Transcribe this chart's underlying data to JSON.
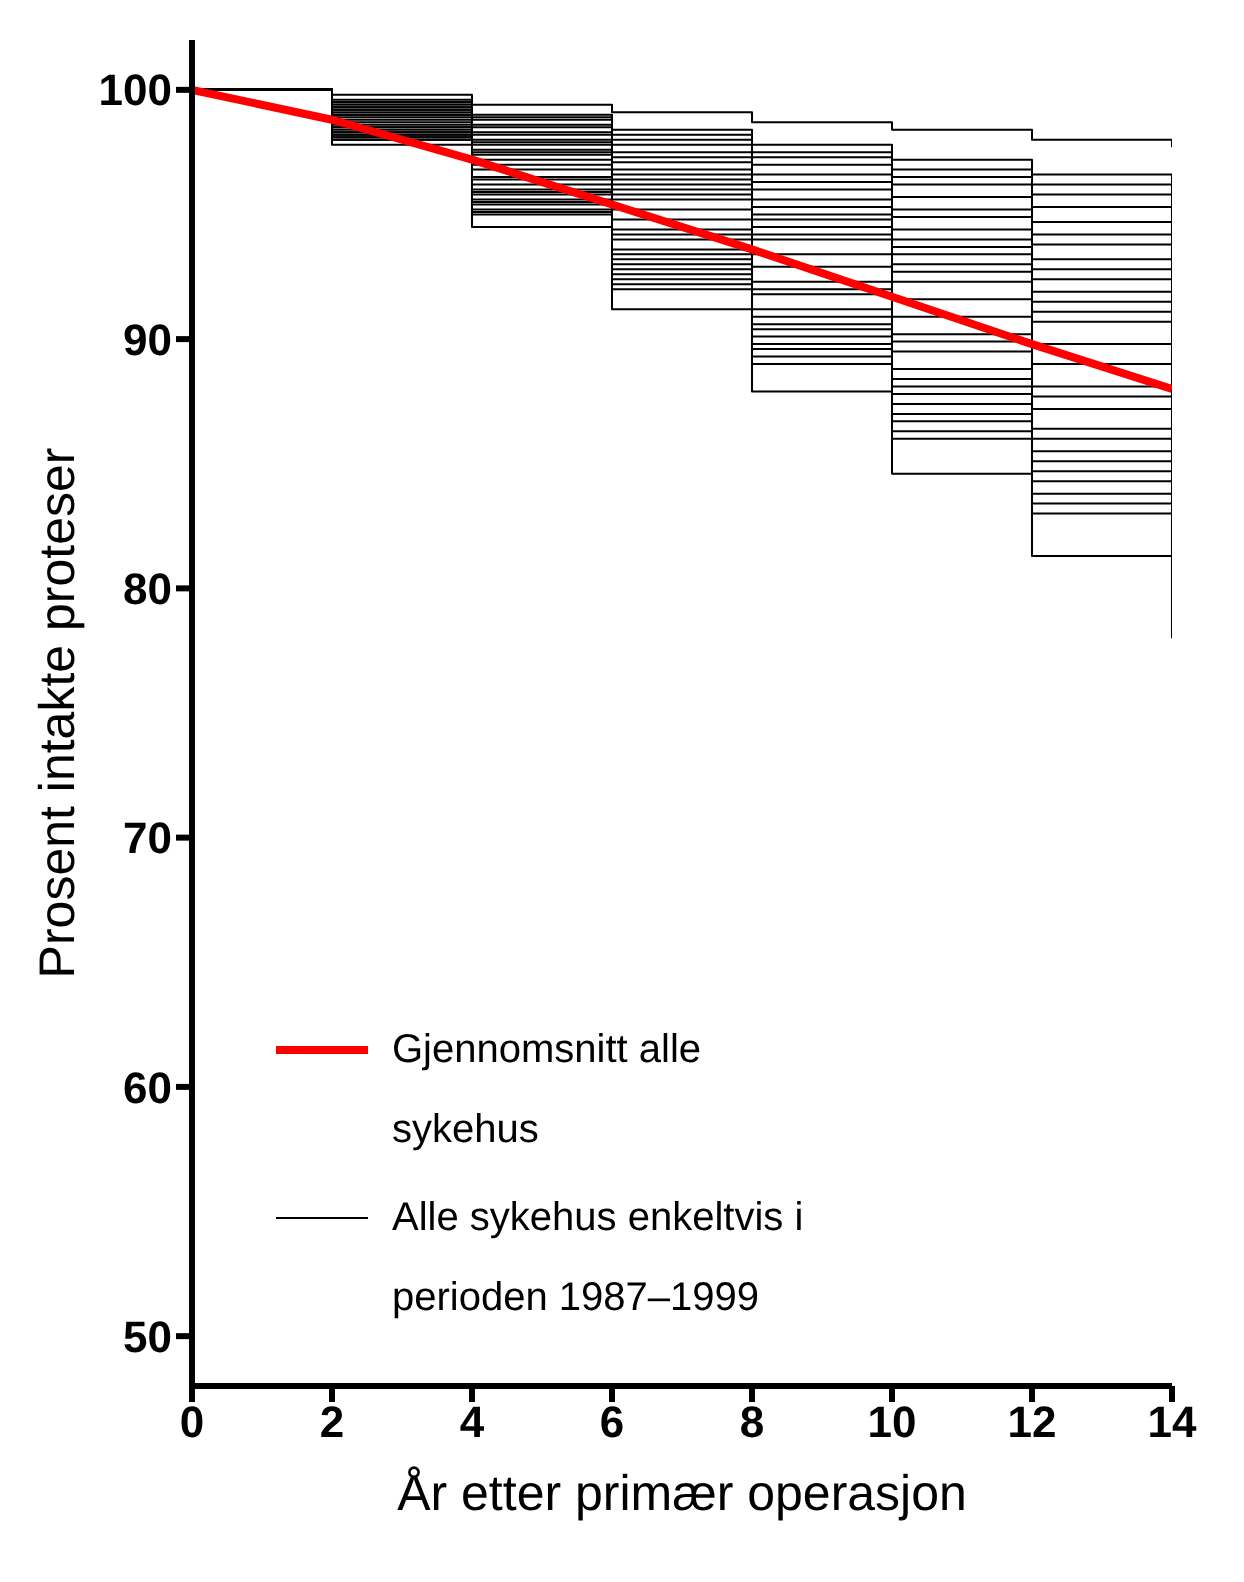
{
  "chart_data": {
    "type": "step",
    "xlabel": "År etter primær operasjon",
    "ylabel": "Prosent intakte proteser",
    "x": [
      0,
      2,
      4,
      6,
      8,
      10,
      12,
      14
    ],
    "xlim": [
      0,
      14
    ],
    "xticks": [
      0,
      2,
      4,
      6,
      8,
      10,
      12,
      14
    ],
    "ylim": [
      48,
      102
    ],
    "yticks": [
      50,
      60,
      70,
      80,
      90,
      100
    ],
    "grid": false,
    "legend": "bottom left",
    "marker": "none",
    "line_style": "solid",
    "series": [
      {
        "name": "Alle sykehus enkeltvis i perioden 1987–1999",
        "color": "#000000",
        "values": [
          100,
          99.8,
          99.4,
          99.1,
          98.7,
          98.4,
          98,
          97.7
        ]
      },
      {
        "color": "#000000",
        "values": [
          100,
          99.6,
          99,
          98.4,
          97.8,
          97.2,
          96.6,
          96
        ]
      },
      {
        "color": "#000000",
        "values": [
          100,
          99.5,
          98.9,
          98.2,
          97.5,
          96.8,
          96.2,
          95.5
        ]
      },
      {
        "color": "#000000",
        "values": [
          100,
          99.5,
          98.8,
          98,
          97.3,
          96.5,
          95.8,
          95
        ]
      },
      {
        "color": "#000000",
        "values": [
          100,
          99.5,
          98.6,
          97.8,
          97,
          96.2,
          95.3,
          94.5
        ]
      },
      {
        "color": "#000000",
        "values": [
          100,
          99.4,
          98.5,
          97.5,
          96.6,
          95.7,
          94.7,
          93.8
        ]
      },
      {
        "color": "#000000",
        "values": [
          100,
          99.3,
          98.3,
          97.3,
          96.3,
          95.2,
          94.2,
          93.2
        ]
      },
      {
        "color": "#000000",
        "values": [
          100,
          99.3,
          98.2,
          97.1,
          96,
          94.9,
          93.8,
          92.7
        ]
      },
      {
        "color": "#000000",
        "values": [
          100,
          99.2,
          98,
          96.8,
          95.6,
          94.4,
          93.2,
          92
        ]
      },
      {
        "color": "#000000",
        "values": [
          100,
          99.2,
          97.9,
          96.6,
          95.3,
          94,
          92.8,
          91.5
        ]
      },
      {
        "color": "#000000",
        "values": [
          100,
          99.1,
          97.8,
          96.4,
          95,
          93.7,
          92.4,
          91
        ]
      },
      {
        "color": "#000000",
        "values": [
          100,
          99,
          97.6,
          96.2,
          94.8,
          93.4,
          91.9,
          90.5
        ]
      },
      {
        "color": "#000000",
        "values": [
          100,
          99,
          97.5,
          96,
          94.5,
          93,
          91.5,
          90
        ]
      },
      {
        "color": "#000000",
        "values": [
          100,
          99,
          97.4,
          95.8,
          94.2,
          92.7,
          91.1,
          89.5
        ]
      },
      {
        "color": "#000000",
        "values": [
          100,
          98.9,
          97.2,
          95.6,
          94,
          92.3,
          90.7,
          89
        ]
      },
      {
        "color": "#000000",
        "values": [
          100,
          98.8,
          97,
          95.2,
          93.4,
          91.6,
          89.8,
          88
        ]
      },
      {
        "color": "#000000",
        "values": [
          100,
          98.7,
          96.8,
          94.8,
          92.9,
          90.9,
          89,
          87
        ]
      },
      {
        "color": "#000000",
        "values": [
          100,
          98.6,
          96.5,
          94.4,
          92.3,
          90.2,
          88.1,
          86
        ]
      },
      {
        "color": "#000000",
        "values": [
          100,
          98.5,
          96.4,
          94.2,
          92,
          89.9,
          87.7,
          85.5
        ]
      },
      {
        "color": "#000000",
        "values": [
          100,
          98.5,
          96.2,
          94,
          91.8,
          89.5,
          87.2,
          85
        ]
      },
      {
        "color": "#000000",
        "values": [
          100,
          98.4,
          96,
          93.6,
          91.2,
          88.8,
          86.4,
          84
        ]
      },
      {
        "color": "#000000",
        "values": [
          100,
          98.3,
          95.9,
          93.4,
          90.9,
          88.4,
          86,
          83.5
        ]
      },
      {
        "color": "#000000",
        "values": [
          100,
          98.3,
          95.8,
          93.2,
          90.6,
          88.1,
          85.5,
          83
        ]
      },
      {
        "color": "#000000",
        "values": [
          100,
          98.2,
          95.6,
          93,
          90.4,
          87.8,
          85.1,
          82.5
        ]
      },
      {
        "color": "#000000",
        "values": [
          100,
          98.2,
          95.5,
          92.8,
          90.1,
          87.4,
          84.7,
          82
        ]
      },
      {
        "color": "#000000",
        "values": [
          100,
          98.1,
          95.4,
          92.6,
          89.8,
          87,
          84.3,
          81.5
        ]
      },
      {
        "color": "#000000",
        "values": [
          100,
          98.1,
          95.2,
          92.4,
          89.6,
          86.7,
          83.8,
          81
        ]
      },
      {
        "color": "#000000",
        "values": [
          100,
          98,
          95.1,
          92.2,
          89.3,
          86.3,
          83.4,
          80.5
        ]
      },
      {
        "color": "#000000",
        "values": [
          100,
          98,
          95,
          92,
          89,
          86,
          83,
          80
        ]
      },
      {
        "color": "#000000",
        "values": [
          100,
          97.8,
          94.5,
          91.2,
          87.9,
          84.6,
          81.3,
          78
        ]
      },
      {
        "name": "Gjennomsnitt alle sykehus",
        "type": "line",
        "color": "#ff0000",
        "values": [
          100,
          98.8,
          97.2,
          95.4,
          93.6,
          91.7,
          89.8,
          88
        ]
      }
    ]
  }
}
